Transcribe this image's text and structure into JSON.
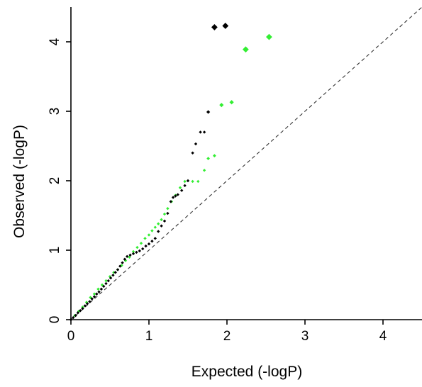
{
  "chart_data": {
    "type": "scatter",
    "title": "",
    "xlabel": "Expected (-logP)",
    "ylabel": "Observed (-logP)",
    "xlim": [
      0,
      4.5
    ],
    "ylim": [
      0,
      4.5
    ],
    "xticks": [
      "0",
      "1",
      "2",
      "3",
      "4"
    ],
    "yticks": [
      "0",
      "1",
      "2",
      "3",
      "4"
    ],
    "grid": false,
    "legend": "none",
    "reference_line": {
      "style": "dashed",
      "slope": 1,
      "intercept": 0,
      "color": "#444444"
    },
    "series": [
      {
        "color": "#000000",
        "points": [
          [
            0.0,
            0.0
          ],
          [
            0.03,
            0.03
          ],
          [
            0.06,
            0.06
          ],
          [
            0.09,
            0.1
          ],
          [
            0.12,
            0.13
          ],
          [
            0.15,
            0.16
          ],
          [
            0.18,
            0.2
          ],
          [
            0.21,
            0.23
          ],
          [
            0.24,
            0.26
          ],
          [
            0.27,
            0.3
          ],
          [
            0.3,
            0.33
          ],
          [
            0.33,
            0.37
          ],
          [
            0.36,
            0.4
          ],
          [
            0.39,
            0.44
          ],
          [
            0.42,
            0.48
          ],
          [
            0.45,
            0.52
          ],
          [
            0.48,
            0.56
          ],
          [
            0.51,
            0.6
          ],
          [
            0.54,
            0.64
          ],
          [
            0.57,
            0.68
          ],
          [
            0.6,
            0.72
          ],
          [
            0.63,
            0.77
          ],
          [
            0.66,
            0.82
          ],
          [
            0.69,
            0.87
          ],
          [
            0.72,
            0.91
          ],
          [
            0.76,
            0.93
          ],
          [
            0.8,
            0.95
          ],
          [
            0.84,
            0.97
          ],
          [
            0.88,
            0.99
          ],
          [
            0.92,
            1.02
          ],
          [
            0.96,
            1.06
          ],
          [
            1.0,
            1.09
          ],
          [
            1.04,
            1.13
          ],
          [
            1.08,
            1.17
          ],
          [
            1.12,
            1.27
          ],
          [
            1.16,
            1.35
          ],
          [
            1.2,
            1.42
          ],
          [
            1.24,
            1.53
          ],
          [
            1.28,
            1.7
          ],
          [
            1.31,
            1.76
          ],
          [
            1.34,
            1.78
          ],
          [
            1.37,
            1.8
          ],
          [
            1.42,
            1.86
          ],
          [
            1.46,
            1.93
          ],
          [
            1.5,
            2.0
          ],
          [
            1.56,
            2.4
          ],
          [
            1.6,
            2.53
          ],
          [
            1.66,
            2.7
          ],
          [
            1.71,
            2.7
          ],
          [
            1.76,
            2.99
          ],
          [
            1.84,
            4.21
          ],
          [
            1.98,
            4.23
          ]
        ],
        "sizes": [
          1,
          1,
          1,
          1,
          1,
          1,
          1,
          1,
          1,
          1,
          1,
          1,
          1,
          1,
          1,
          1,
          1,
          1,
          1,
          1,
          1,
          1,
          1,
          1,
          1,
          1,
          1,
          1,
          1,
          1,
          1,
          1,
          1,
          1,
          1,
          1,
          1,
          1,
          1,
          1,
          1,
          1,
          1,
          1,
          1,
          1,
          1,
          1,
          1,
          1.2,
          2,
          2
        ]
      },
      {
        "color": "#33ee33",
        "points": [
          [
            0.05,
            0.06
          ],
          [
            0.1,
            0.12
          ],
          [
            0.15,
            0.18
          ],
          [
            0.2,
            0.25
          ],
          [
            0.25,
            0.32
          ],
          [
            0.3,
            0.37
          ],
          [
            0.35,
            0.44
          ],
          [
            0.4,
            0.5
          ],
          [
            0.45,
            0.56
          ],
          [
            0.5,
            0.62
          ],
          [
            0.55,
            0.68
          ],
          [
            0.6,
            0.72
          ],
          [
            0.65,
            0.78
          ],
          [
            0.7,
            0.85
          ],
          [
            0.75,
            0.9
          ],
          [
            0.8,
            0.98
          ],
          [
            0.85,
            1.04
          ],
          [
            0.9,
            1.1
          ],
          [
            0.95,
            1.17
          ],
          [
            1.0,
            1.22
          ],
          [
            1.04,
            1.28
          ],
          [
            1.08,
            1.33
          ],
          [
            1.12,
            1.38
          ],
          [
            1.16,
            1.44
          ],
          [
            1.2,
            1.52
          ],
          [
            1.24,
            1.6
          ],
          [
            1.29,
            1.7
          ],
          [
            1.34,
            1.79
          ],
          [
            1.4,
            1.9
          ],
          [
            1.46,
            1.99
          ],
          [
            1.56,
            1.99
          ],
          [
            1.63,
            1.99
          ],
          [
            1.71,
            2.15
          ],
          [
            1.76,
            2.32
          ],
          [
            1.84,
            2.36
          ],
          [
            1.93,
            3.09
          ],
          [
            2.06,
            3.13
          ],
          [
            2.24,
            3.89
          ],
          [
            2.54,
            4.07
          ]
        ],
        "sizes": [
          1,
          1,
          1,
          1,
          1,
          1,
          1,
          1,
          1,
          1,
          1,
          1,
          1,
          1,
          1,
          1,
          1,
          1,
          1,
          1,
          1,
          1,
          1,
          1,
          1,
          1,
          1,
          1,
          1,
          1,
          1,
          1,
          1,
          1.1,
          1.1,
          1.4,
          1.4,
          2,
          2
        ]
      }
    ]
  }
}
